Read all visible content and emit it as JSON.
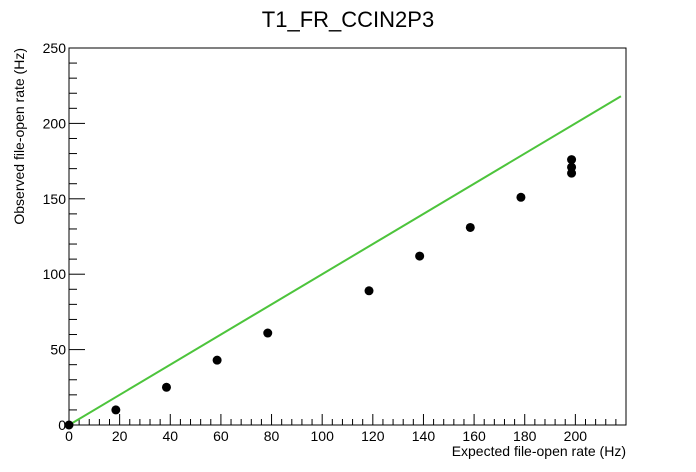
{
  "chart_data": {
    "type": "scatter",
    "title": "T1_FR_CCIN2P3",
    "xlabel": "Expected file-open rate (Hz)",
    "ylabel": "Observed file-open rate (Hz)",
    "xlim": [
      0,
      220
    ],
    "ylim": [
      0,
      250
    ],
    "xticks": [
      0,
      20,
      40,
      60,
      80,
      100,
      120,
      140,
      160,
      180,
      200
    ],
    "yticks": [
      0,
      50,
      100,
      150,
      200,
      250
    ],
    "grid": false,
    "legend": "none",
    "series": [
      {
        "type": "scatter",
        "color": "#000000",
        "points": [
          {
            "x": 0,
            "y": 0
          },
          {
            "x": 18.5,
            "y": 10
          },
          {
            "x": 38.5,
            "y": 25
          },
          {
            "x": 58.5,
            "y": 43
          },
          {
            "x": 78.5,
            "y": 61
          },
          {
            "x": 118.5,
            "y": 89
          },
          {
            "x": 138.5,
            "y": 112
          },
          {
            "x": 158.5,
            "y": 131
          },
          {
            "x": 178.5,
            "y": 151
          },
          {
            "x": 198.5,
            "y": 167
          },
          {
            "x": 198.5,
            "y": 171
          },
          {
            "x": 198.5,
            "y": 176
          }
        ]
      },
      {
        "type": "line",
        "color": "#4dc43c",
        "points": [
          {
            "x": 0,
            "y": 0
          },
          {
            "x": 218,
            "y": 218
          }
        ]
      }
    ]
  }
}
